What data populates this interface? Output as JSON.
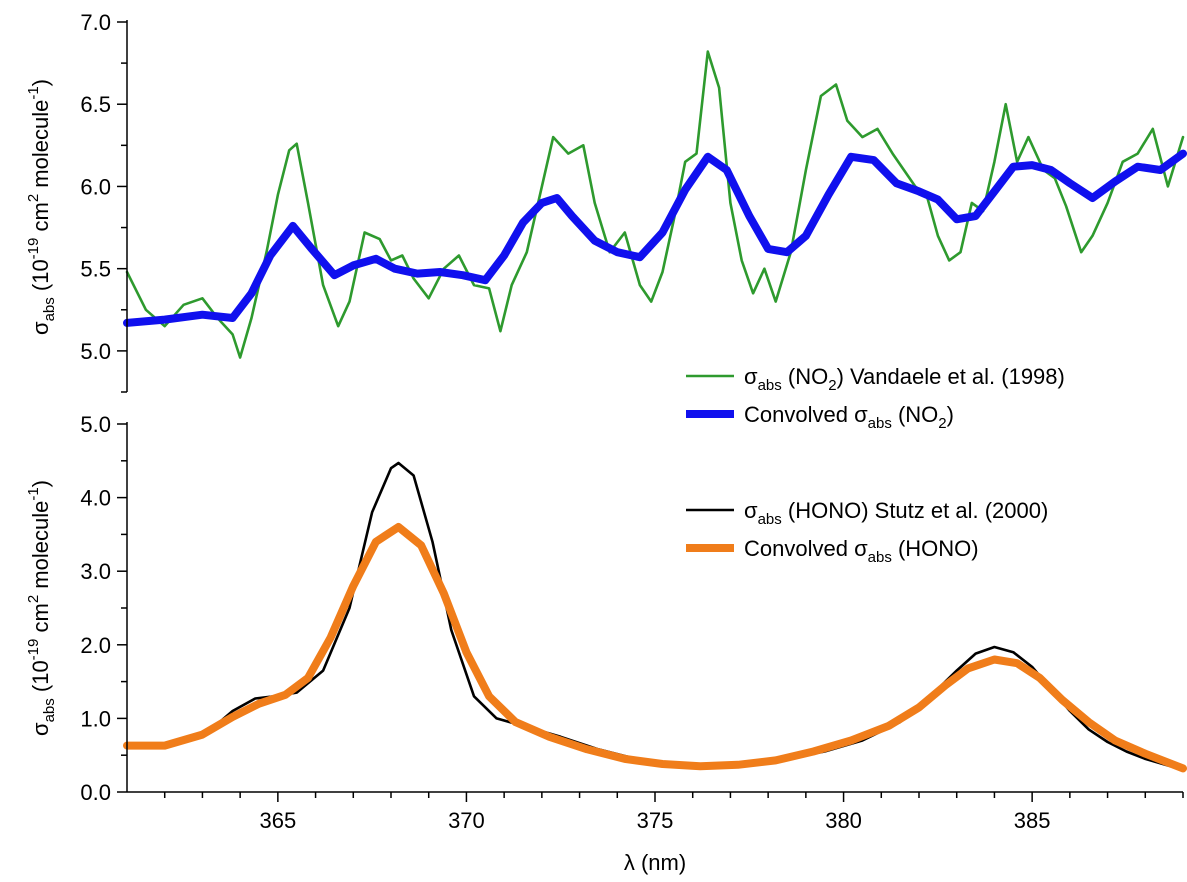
{
  "chart_data": [
    {
      "type": "line",
      "panel": "top",
      "xlim": [
        361,
        389
      ],
      "ylim": [
        4.75,
        7.0
      ],
      "yticks": [
        "5.0",
        "5.5",
        "6.0",
        "6.5",
        "7.0"
      ],
      "ytick_values": [
        5.0,
        5.5,
        6.0,
        6.5,
        7.0
      ],
      "ylabel": {
        "sym": "σ",
        "sub": "abs",
        "pre": " (10",
        "exp1": "-19",
        "mid": " cm",
        "exp2": "2",
        "post": " molecule",
        "exp3": "-1",
        "end": ")"
      },
      "legend_position": "bottom-right",
      "series": [
        {
          "name": {
            "sym": "σ",
            "sub": "abs",
            "a": " (NO",
            "sub2": "2",
            "b": ") Vandaele et al. (1998)"
          },
          "color": "#2e9a2e",
          "x": [
            361.0,
            361.5,
            362.0,
            362.5,
            363.0,
            363.4,
            363.8,
            364.0,
            364.3,
            364.7,
            365.0,
            365.3,
            365.5,
            365.8,
            366.2,
            366.6,
            366.9,
            367.3,
            367.7,
            368.0,
            368.3,
            368.6,
            369.0,
            369.4,
            369.8,
            370.2,
            370.6,
            370.9,
            371.2,
            371.6,
            372.0,
            372.3,
            372.7,
            373.1,
            373.4,
            373.8,
            374.2,
            374.6,
            374.9,
            375.2,
            375.5,
            375.8,
            376.1,
            376.4,
            376.7,
            377.0,
            377.3,
            377.6,
            377.9,
            378.2,
            378.6,
            379.0,
            379.4,
            379.8,
            380.1,
            380.5,
            380.9,
            381.3,
            381.6,
            381.9,
            382.2,
            382.5,
            382.8,
            383.1,
            383.4,
            383.7,
            384.0,
            384.3,
            384.6,
            384.9,
            385.3,
            385.6,
            385.9,
            386.3,
            386.6,
            387.0,
            387.4,
            387.8,
            388.2,
            388.6,
            389.0
          ],
          "y": [
            5.48,
            5.25,
            5.15,
            5.28,
            5.32,
            5.2,
            5.1,
            4.96,
            5.2,
            5.6,
            5.95,
            6.22,
            6.26,
            5.9,
            5.4,
            5.15,
            5.3,
            5.72,
            5.68,
            5.55,
            5.58,
            5.44,
            5.32,
            5.5,
            5.58,
            5.4,
            5.38,
            5.12,
            5.4,
            5.6,
            6.0,
            6.3,
            6.2,
            6.25,
            5.9,
            5.6,
            5.72,
            5.4,
            5.3,
            5.48,
            5.8,
            6.15,
            6.2,
            6.82,
            6.6,
            5.9,
            5.55,
            5.35,
            5.5,
            5.3,
            5.6,
            6.1,
            6.55,
            6.62,
            6.4,
            6.3,
            6.35,
            6.2,
            6.1,
            6.0,
            5.95,
            5.7,
            5.55,
            5.6,
            5.9,
            5.85,
            6.15,
            6.5,
            6.15,
            6.3,
            6.1,
            6.05,
            5.88,
            5.6,
            5.7,
            5.9,
            6.15,
            6.2,
            6.35,
            6.0,
            6.3
          ]
        },
        {
          "name": {
            "sym": "",
            "sub": "",
            "a": "Convolved σ",
            "sub1": "abs",
            "b": " (NO",
            "sub2": "2",
            "c": ")"
          },
          "color": "#1010ee",
          "x": [
            361.0,
            362.0,
            363.0,
            363.8,
            364.3,
            364.8,
            365.4,
            365.9,
            366.5,
            367.0,
            367.6,
            368.1,
            368.7,
            369.3,
            369.9,
            370.5,
            371.0,
            371.5,
            372.0,
            372.4,
            372.8,
            373.4,
            374.0,
            374.6,
            375.2,
            375.8,
            376.4,
            376.9,
            377.5,
            378.0,
            378.5,
            379.0,
            379.6,
            380.2,
            380.8,
            381.4,
            382.0,
            382.5,
            383.0,
            383.5,
            384.0,
            384.5,
            385.0,
            385.5,
            386.0,
            386.6,
            387.2,
            387.8,
            388.4,
            389.0
          ],
          "y": [
            5.17,
            5.19,
            5.22,
            5.2,
            5.35,
            5.58,
            5.76,
            5.62,
            5.46,
            5.52,
            5.56,
            5.5,
            5.47,
            5.48,
            5.46,
            5.43,
            5.58,
            5.78,
            5.9,
            5.93,
            5.82,
            5.67,
            5.6,
            5.57,
            5.72,
            5.98,
            6.18,
            6.1,
            5.82,
            5.62,
            5.6,
            5.7,
            5.95,
            6.18,
            6.16,
            6.02,
            5.97,
            5.92,
            5.8,
            5.82,
            5.97,
            6.12,
            6.13,
            6.1,
            6.02,
            5.93,
            6.03,
            6.12,
            6.1,
            6.2
          ]
        }
      ]
    },
    {
      "type": "line",
      "panel": "bottom",
      "xlim": [
        361,
        389
      ],
      "ylim": [
        0.0,
        5.0
      ],
      "xticks": [
        "365",
        "370",
        "375",
        "380",
        "385"
      ],
      "xtick_values": [
        365,
        370,
        375,
        380,
        385
      ],
      "yticks": [
        "0.0",
        "1.0",
        "2.0",
        "3.0",
        "4.0",
        "5.0"
      ],
      "ytick_values": [
        0,
        1,
        2,
        3,
        4,
        5
      ],
      "xlabel": "λ (nm)",
      "ylabel": {
        "sym": "σ",
        "sub": "abs",
        "pre": " (10",
        "exp1": "-19",
        "mid": " cm",
        "exp2": "2",
        "post": " molecule",
        "exp3": "-1",
        "end": ")"
      },
      "legend_position": "top-right",
      "series": [
        {
          "name": {
            "sym": "σ",
            "sub": "abs",
            "a": " (HONO) Stutz et al. (2000)"
          },
          "color": "#000000",
          "x": [
            361.0,
            362.0,
            363.0,
            363.8,
            364.4,
            364.9,
            365.5,
            366.2,
            366.9,
            367.5,
            368.0,
            368.2,
            368.6,
            369.1,
            369.6,
            370.2,
            370.8,
            371.5,
            372.5,
            373.5,
            374.5,
            375.5,
            376.5,
            377.5,
            378.5,
            379.5,
            380.5,
            381.5,
            382.3,
            383.0,
            383.5,
            384.0,
            384.5,
            385.0,
            385.5,
            386.0,
            386.5,
            387.0,
            387.5,
            388.0,
            389.0
          ],
          "y": [
            0.63,
            0.62,
            0.75,
            1.1,
            1.27,
            1.3,
            1.35,
            1.65,
            2.5,
            3.8,
            4.4,
            4.47,
            4.3,
            3.4,
            2.2,
            1.3,
            1.0,
            0.9,
            0.75,
            0.58,
            0.45,
            0.37,
            0.35,
            0.37,
            0.45,
            0.55,
            0.7,
            0.95,
            1.3,
            1.65,
            1.88,
            1.97,
            1.9,
            1.7,
            1.4,
            1.1,
            0.85,
            0.68,
            0.55,
            0.45,
            0.3
          ]
        },
        {
          "name": {
            "sym": "",
            "sub": "",
            "a": "Convolved σ",
            "sub1": "abs",
            "b": " (HONO)",
            "c": ""
          },
          "color": "#f07d1a",
          "x": [
            361.0,
            362.0,
            363.0,
            363.8,
            364.5,
            365.2,
            365.8,
            366.4,
            367.0,
            367.6,
            368.2,
            368.8,
            369.4,
            370.0,
            370.6,
            371.3,
            372.2,
            373.2,
            374.2,
            375.2,
            376.2,
            377.2,
            378.2,
            379.2,
            380.2,
            381.2,
            382.0,
            382.7,
            383.3,
            384.0,
            384.6,
            385.2,
            385.8,
            386.5,
            387.2,
            388.0,
            389.0
          ],
          "y": [
            0.63,
            0.63,
            0.78,
            1.02,
            1.2,
            1.32,
            1.55,
            2.1,
            2.8,
            3.4,
            3.6,
            3.35,
            2.7,
            1.9,
            1.3,
            0.95,
            0.75,
            0.58,
            0.45,
            0.38,
            0.35,
            0.37,
            0.43,
            0.55,
            0.7,
            0.9,
            1.15,
            1.45,
            1.68,
            1.8,
            1.75,
            1.55,
            1.25,
            0.95,
            0.7,
            0.52,
            0.32
          ]
        }
      ]
    }
  ]
}
